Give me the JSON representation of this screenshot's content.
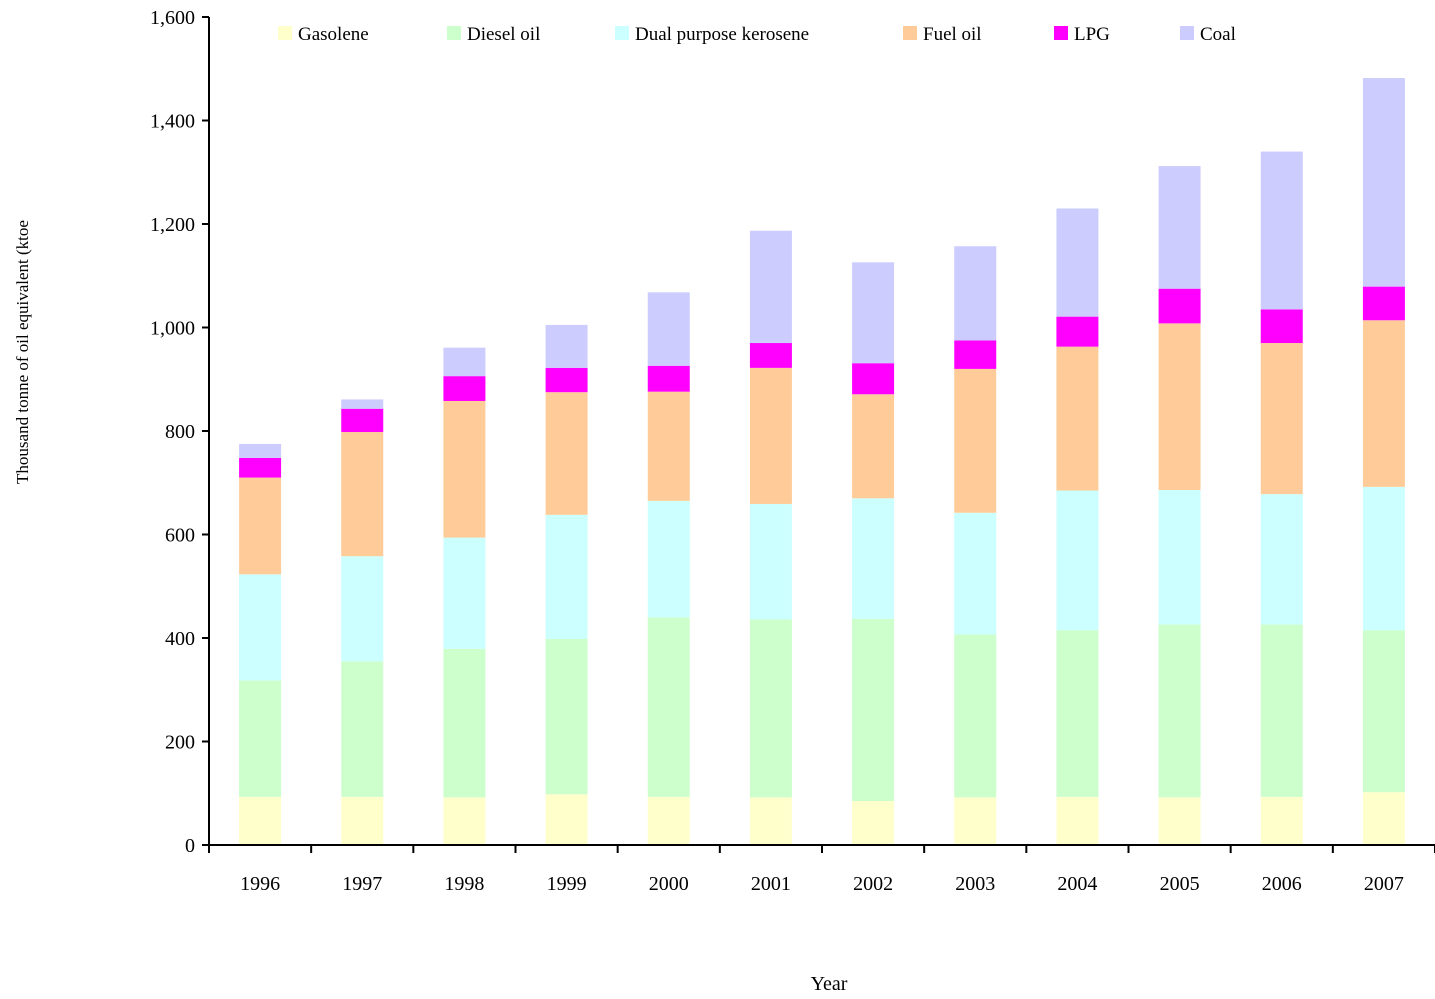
{
  "chart_data": {
    "type": "bar",
    "stacked": true,
    "title": "",
    "xlabel": "Year",
    "ylabel": "Thousand tonne of oil equivalent (ktoe",
    "ylim": [
      0,
      1600
    ],
    "yticks": [
      0,
      200,
      400,
      600,
      800,
      1000,
      1200,
      1400,
      1600
    ],
    "ytick_labels": [
      "0",
      "200",
      "400",
      "600",
      "800",
      "1,000",
      "1,200",
      "1,400",
      "1,600"
    ],
    "grid": false,
    "legend_position": "top",
    "categories": [
      "1996",
      "1997",
      "1998",
      "1999",
      "2000",
      "2001",
      "2002",
      "2003",
      "2004",
      "2005",
      "2006",
      "2007"
    ],
    "series": [
      {
        "name": "Gasolene",
        "color": "#FFFFCC",
        "values": [
          93,
          93,
          92,
          98,
          93,
          92,
          85,
          92,
          93,
          92,
          93,
          102
        ]
      },
      {
        "name": "Diesel oil",
        "color": "#CCFFCC",
        "values": [
          225,
          262,
          287,
          300,
          347,
          344,
          352,
          315,
          322,
          334,
          333,
          313
        ]
      },
      {
        "name": "Dual purpose kerosene",
        "color": "#CCFFFF",
        "values": [
          205,
          203,
          215,
          240,
          225,
          223,
          233,
          235,
          270,
          260,
          252,
          277
        ]
      },
      {
        "name": "Fuel oil",
        "color": "#FFCC99",
        "values": [
          187,
          240,
          264,
          237,
          211,
          263,
          201,
          278,
          278,
          322,
          292,
          322
        ]
      },
      {
        "name": "LPG",
        "color": "#FF00FF",
        "values": [
          38,
          45,
          48,
          47,
          50,
          48,
          60,
          55,
          58,
          67,
          65,
          65
        ]
      },
      {
        "name": "Coal",
        "color": "#CCCCFF",
        "values": [
          27,
          18,
          55,
          83,
          142,
          217,
          195,
          182,
          209,
          237,
          305,
          403
        ]
      }
    ]
  }
}
